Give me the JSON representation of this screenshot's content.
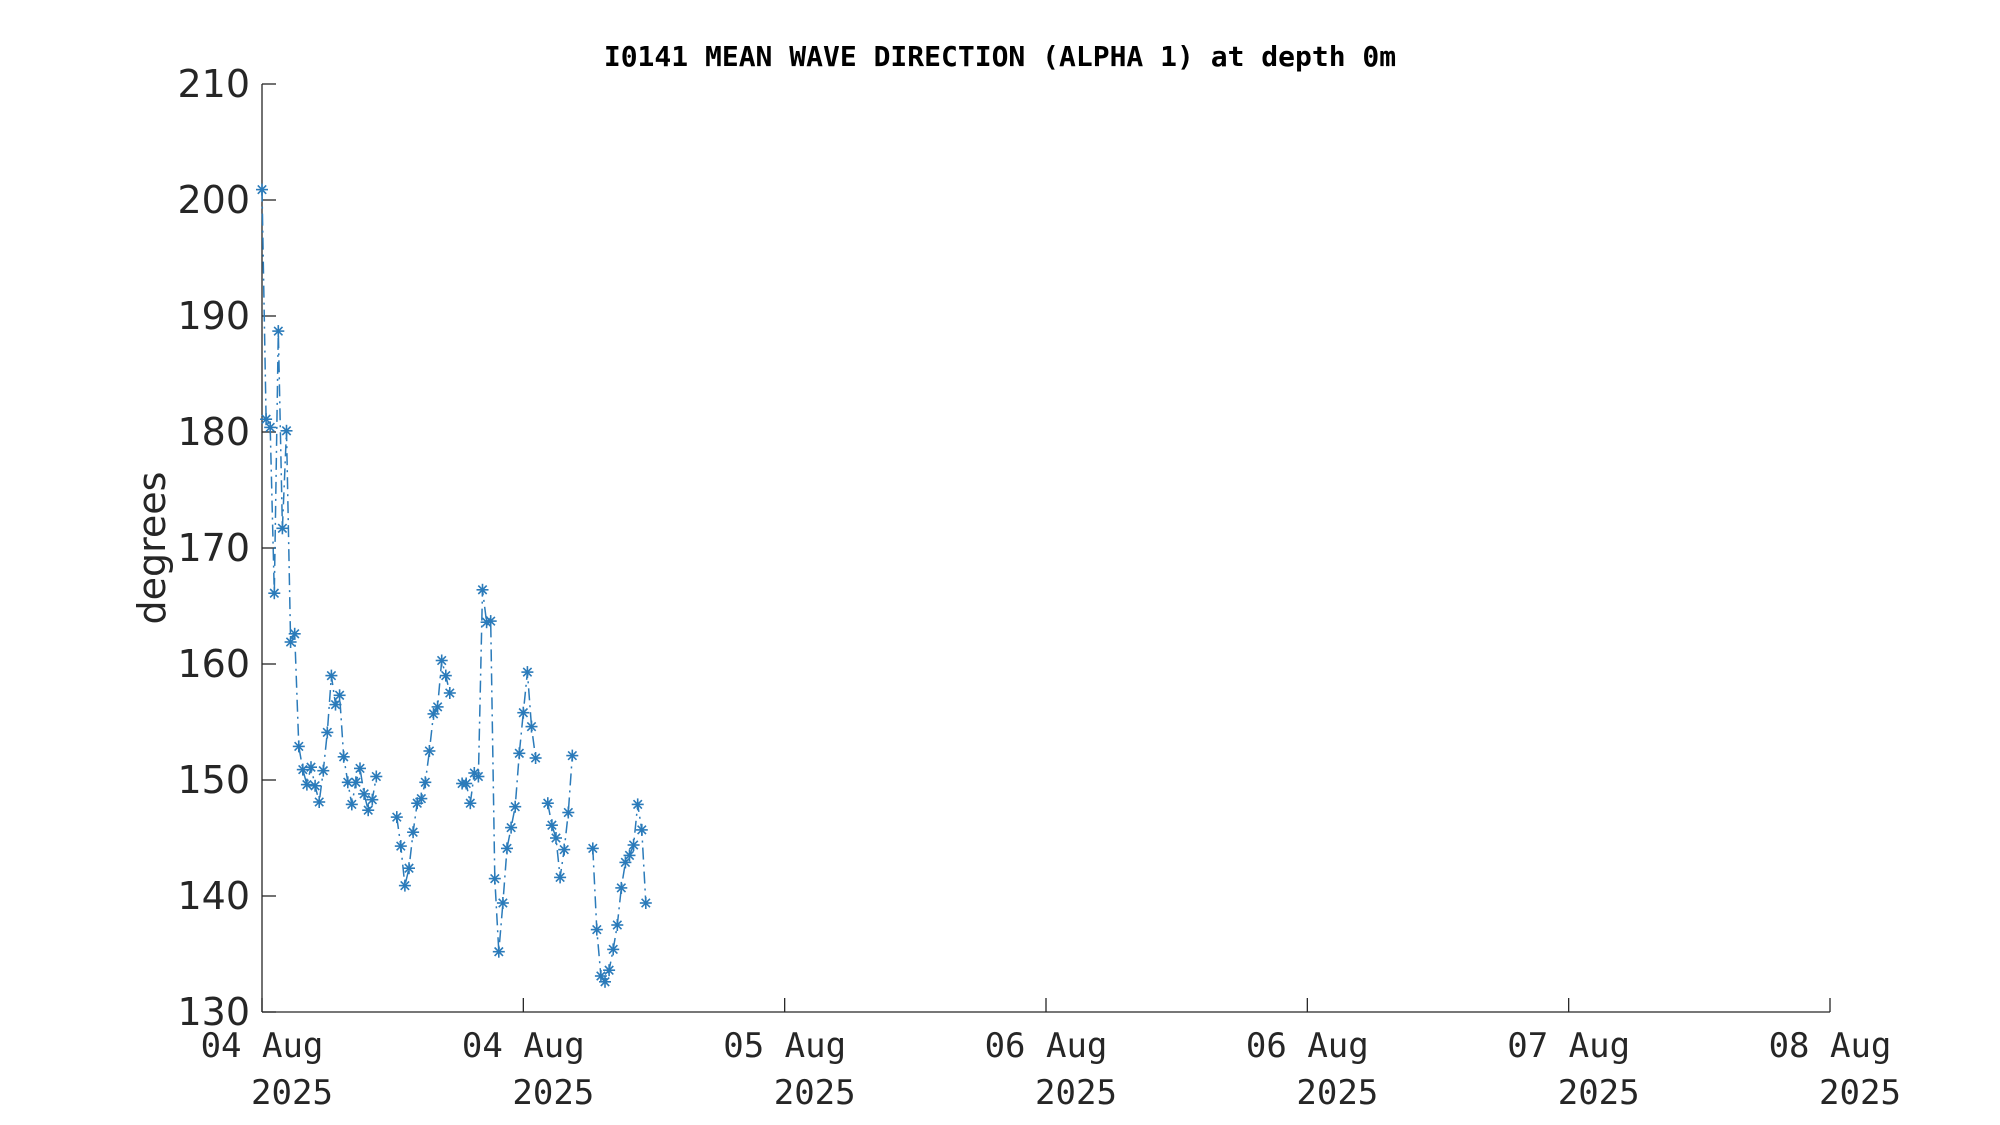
{
  "chart_data": {
    "type": "line",
    "title": "I0141 MEAN WAVE DIRECTION (ALPHA 1) at depth 0m",
    "xlabel": "",
    "ylabel": "degrees",
    "ylim": [
      130,
      210
    ],
    "yticks": [
      "130",
      "140",
      "150",
      "160",
      "170",
      "180",
      "190",
      "200",
      "210"
    ],
    "xlim": [
      "2025-08-04 00:00",
      "2025-08-08 00:00"
    ],
    "xticks": [
      {
        "line1": "04 Aug",
        "line2": "2025"
      },
      {
        "line1": "04 Aug",
        "line2": "2025"
      },
      {
        "line1": "05 Aug",
        "line2": "2025"
      },
      {
        "line1": "06 Aug",
        "line2": "2025"
      },
      {
        "line1": "06 Aug",
        "line2": "2025"
      },
      {
        "line1": "07 Aug",
        "line2": "2025"
      },
      {
        "line1": "08 Aug",
        "line2": "2025"
      }
    ],
    "grid": false,
    "marker": "asterisk",
    "line_style": "dash-dot",
    "color": "#2b7bba",
    "series": [
      {
        "x": [
          "2025-08-04 00:00",
          "2025-08-04 00:15",
          "2025-08-04 00:30",
          "2025-08-04 00:45",
          "2025-08-04 01:00",
          "2025-08-04 01:15",
          "2025-08-04 01:30",
          "2025-08-04 01:45",
          "2025-08-04 02:00",
          "2025-08-04 02:15",
          "2025-08-04 02:30",
          "2025-08-04 02:45",
          "2025-08-04 03:00",
          "2025-08-04 03:15",
          "2025-08-04 03:30",
          "2025-08-04 03:45",
          "2025-08-04 04:00",
          "2025-08-04 04:15",
          "2025-08-04 04:30",
          "2025-08-04 04:45",
          "2025-08-04 05:00",
          "2025-08-04 05:15",
          "2025-08-04 05:30",
          "2025-08-04 05:45",
          "2025-08-04 06:00",
          "2025-08-04 06:15",
          "2025-08-04 06:30",
          "2025-08-04 06:45",
          "2025-08-04 07:00",
          "2025-08-04 07:15",
          null,
          "2025-08-04 08:15",
          "2025-08-04 08:30",
          "2025-08-04 08:45",
          "2025-08-04 09:00",
          "2025-08-04 09:15",
          "2025-08-04 09:30",
          "2025-08-04 09:45",
          "2025-08-04 10:00",
          "2025-08-04 10:15",
          "2025-08-04 10:30",
          "2025-08-04 10:45",
          "2025-08-04 11:00",
          "2025-08-04 11:15",
          "2025-08-04 11:30",
          null,
          "2025-08-04 12:15",
          "2025-08-04 12:30",
          "2025-08-04 12:45",
          "2025-08-04 13:00",
          "2025-08-04 13:15",
          "2025-08-04 13:30",
          "2025-08-04 13:45",
          "2025-08-04 14:00",
          "2025-08-04 14:15",
          "2025-08-04 14:30",
          "2025-08-04 14:45",
          "2025-08-04 15:00",
          "2025-08-04 15:15",
          "2025-08-04 15:30",
          "2025-08-04 15:45",
          "2025-08-04 16:00",
          "2025-08-04 16:15",
          "2025-08-04 16:30",
          "2025-08-04 16:45",
          null,
          "2025-08-04 17:30",
          "2025-08-04 17:45",
          "2025-08-04 18:00",
          "2025-08-04 18:15",
          "2025-08-04 18:30",
          "2025-08-04 18:45",
          "2025-08-04 19:00",
          null,
          "2025-08-04 20:15",
          "2025-08-04 20:30",
          "2025-08-04 20:45",
          "2025-08-04 21:00",
          "2025-08-04 21:15",
          "2025-08-04 21:30",
          "2025-08-04 21:45",
          "2025-08-04 22:00",
          "2025-08-04 22:15",
          "2025-08-04 22:30",
          "2025-08-04 22:45",
          "2025-08-04 23:00",
          "2025-08-04 23:15",
          "2025-08-04 23:30",
          "2025-08-04 23:45",
          "2025-08-05 00:00"
        ],
        "y": [
          200.9,
          181.1,
          180.4,
          166.1,
          188.7,
          171.7,
          180.1,
          161.9,
          162.6,
          152.9,
          150.9,
          149.6,
          151.1,
          149.5,
          148.1,
          150.8,
          154.1,
          159.0,
          156.5,
          157.3,
          152.0,
          149.8,
          147.9,
          149.8,
          151.0,
          148.8,
          147.4,
          148.3,
          150.3,
          null,
          null,
          146.8,
          144.3,
          140.9,
          142.4,
          145.5,
          148.0,
          148.4,
          149.8,
          152.5,
          155.7,
          156.3,
          160.3,
          159.0,
          157.5,
          null,
          149.7,
          149.7,
          148.0,
          150.6,
          150.3,
          166.4,
          163.6,
          163.7,
          141.5,
          135.2,
          139.4,
          144.1,
          145.9,
          147.7,
          152.3,
          155.8,
          159.3,
          154.6,
          151.9,
          null,
          148.0,
          146.1,
          145.0,
          141.6,
          144.0,
          147.2,
          152.1,
          null,
          144.1,
          137.1,
          133.1,
          132.6,
          133.6,
          135.4,
          137.5,
          140.7,
          142.9,
          143.5,
          144.4,
          147.9,
          145.7,
          139.4,
          null,
          null
        ]
      }
    ]
  }
}
